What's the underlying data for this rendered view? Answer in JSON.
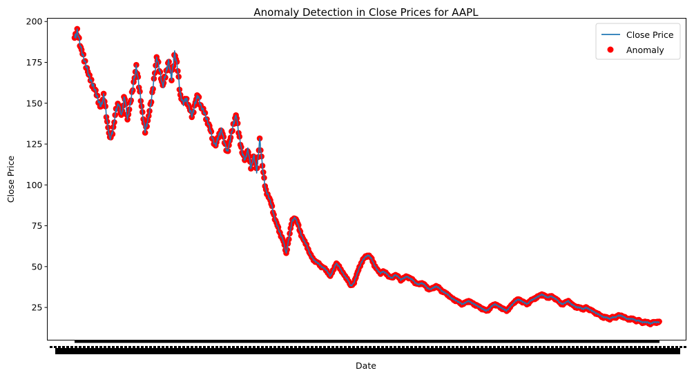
{
  "chart_data": {
    "type": "line",
    "title": "Anomaly Detection in Close Prices for AAPL",
    "xlabel": "Date",
    "ylabel": "Close Price",
    "ylim": [
      5,
      202
    ],
    "yticks": [
      25,
      50,
      75,
      100,
      125,
      150,
      175,
      200
    ],
    "xtick_labels_legible": false,
    "legend": {
      "placement": "upper right",
      "entries": [
        "Close Price",
        "Anomaly"
      ]
    },
    "colors": {
      "line": "#1f77b4",
      "anomaly": "#ff0000"
    },
    "series": [
      {
        "name": "Close Price",
        "marker": "line",
        "x": [
          0,
          10,
          20,
          30,
          40,
          50,
          60,
          70,
          80,
          90,
          100,
          110,
          120,
          130,
          140,
          150,
          160,
          170,
          180,
          190,
          200,
          210,
          220,
          230,
          240,
          250,
          260,
          270,
          280,
          290,
          300,
          310,
          320,
          330,
          340,
          350,
          360,
          370,
          380,
          390,
          400,
          410,
          420,
          430,
          440,
          450,
          460,
          470,
          480,
          490,
          500,
          510,
          520,
          530,
          540,
          550,
          560,
          570,
          580,
          590,
          600,
          610,
          620,
          630,
          640,
          650,
          660,
          670,
          680,
          690,
          700,
          710,
          720,
          730,
          740,
          750,
          760,
          770,
          780,
          790,
          800,
          810,
          820,
          830,
          840,
          850,
          860,
          870,
          880,
          890,
          900,
          910,
          920,
          930,
          940,
          950,
          960,
          970,
          980,
          990,
          1000,
          1010,
          1020,
          1030,
          1040,
          1050,
          1060,
          1070,
          1080,
          1090,
          1100,
          1110,
          1120,
          1130,
          1140,
          1150,
          1160,
          1170,
          1180,
          1190,
          1200,
          1210,
          1220,
          1230,
          1240,
          1250,
          1260,
          1270,
          1280,
          1290,
          1300,
          1310,
          1320,
          1330,
          1340,
          1350,
          1360,
          1370,
          1380,
          1390,
          1400,
          1410,
          1420,
          1430,
          1440,
          1450,
          1460,
          1470,
          1480,
          1490,
          1500,
          1510,
          1520,
          1530,
          1540,
          1550,
          1560,
          1570,
          1580,
          1590,
          1600,
          1610,
          1620,
          1630,
          1640,
          1650,
          1660,
          1670,
          1680,
          1690,
          1700,
          1710,
          1720,
          1730,
          1740,
          1750,
          1760,
          1770,
          1780,
          1790,
          1800,
          1810,
          1820,
          1830,
          1840,
          1850,
          1860,
          1870,
          1880,
          1890,
          1900,
          1910,
          1920,
          1930,
          1940,
          1950,
          1960,
          1970,
          1980,
          1990
        ],
        "values": [
          190,
          194,
          185,
          178,
          173,
          166,
          162,
          158,
          152,
          148,
          155,
          140,
          128,
          133,
          145,
          150,
          142,
          155,
          140,
          150,
          162,
          172,
          160,
          145,
          133,
          140,
          150,
          165,
          178,
          170,
          160,
          168,
          176,
          165,
          181,
          172,
          155,
          150,
          153,
          147,
          142,
          150,
          155,
          148,
          145,
          140,
          135,
          128,
          124,
          130,
          134,
          126,
          120,
          128,
          137,
          143,
          130,
          120,
          115,
          122,
          110,
          118,
          108,
          128,
          110,
          97,
          93,
          88,
          80,
          75,
          70,
          66,
          58,
          68,
          78,
          80,
          76,
          70,
          66,
          63,
          58,
          55,
          53,
          52,
          50,
          49,
          47,
          44,
          48,
          52,
          50,
          47,
          44,
          42,
          38,
          40,
          45,
          50,
          54,
          56,
          57,
          55,
          51,
          48,
          46,
          47,
          46,
          44,
          43,
          45,
          44,
          42,
          43,
          44,
          43,
          42,
          40,
          39,
          40,
          39,
          37,
          36,
          37,
          38,
          37,
          35,
          34,
          33,
          31,
          30,
          29,
          28,
          27,
          28,
          29,
          28,
          27,
          26,
          25,
          24,
          23,
          24,
          26,
          27,
          26,
          25,
          24,
          23,
          25,
          27,
          29,
          30,
          29,
          28,
          27,
          29,
          30,
          31,
          32,
          33,
          32,
          31,
          32,
          31,
          30,
          28,
          27,
          28,
          29,
          27,
          26,
          25,
          25,
          24,
          25,
          24,
          23,
          22,
          21,
          20,
          19,
          19,
          18,
          19,
          19,
          20,
          20,
          19,
          18,
          18,
          18,
          17,
          17,
          16,
          16,
          16,
          15,
          16,
          16,
          16
        ]
      },
      {
        "name": "Anomaly",
        "marker": "scatter",
        "note": "anomaly markers trace the same close-price curve",
        "values_source": "Close Price"
      }
    ]
  }
}
